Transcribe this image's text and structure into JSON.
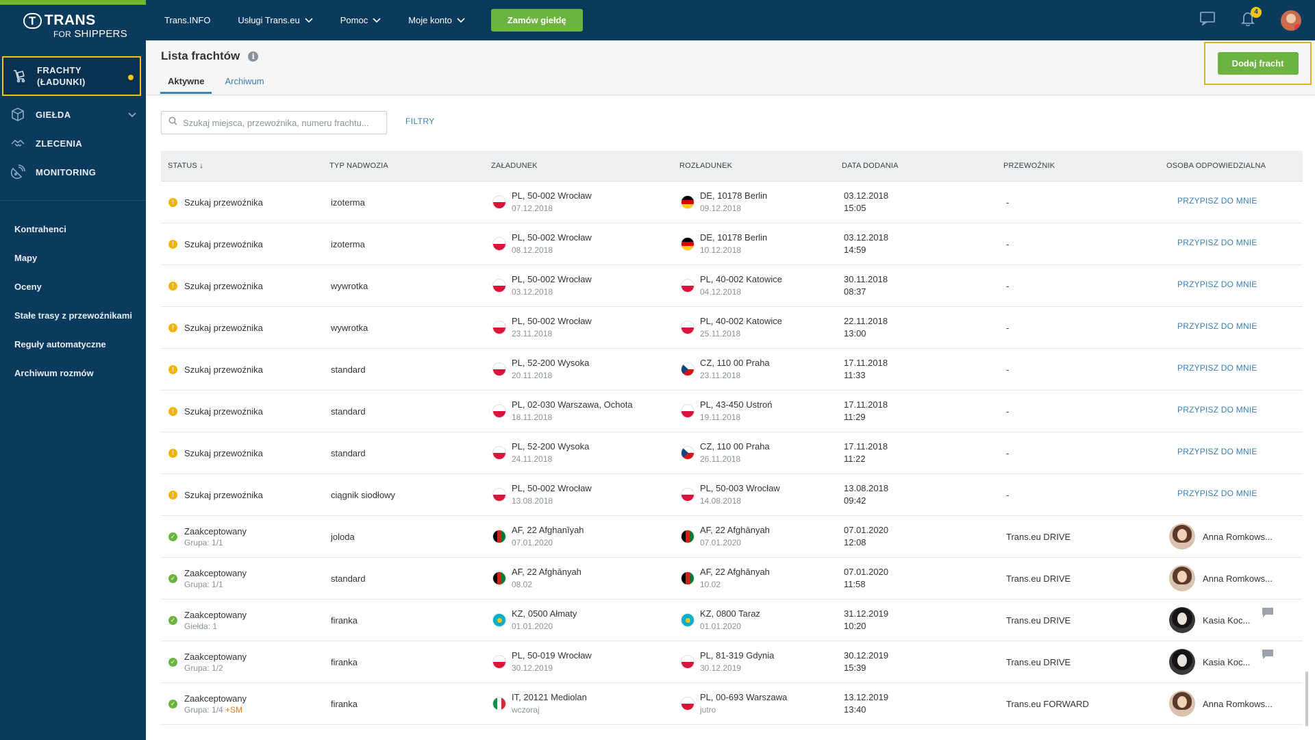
{
  "brand": {
    "name": "TRANS",
    "paren": "T",
    "tagline_prefix": "FOR",
    "tagline": "SHIPPERS"
  },
  "sidebar": {
    "main_items": [
      {
        "label": "FRACHTY (ŁADUNKI)",
        "icon": "cargo-icon",
        "active": true
      },
      {
        "label": "GIEŁDA",
        "icon": "box-icon",
        "has_chevron": true
      },
      {
        "label": "ZLECENIA",
        "icon": "handshake-icon"
      },
      {
        "label": "MONITORING",
        "icon": "satellite-icon"
      }
    ],
    "sub_items": [
      {
        "label": "Kontrahenci"
      },
      {
        "label": "Mapy"
      },
      {
        "label": "Oceny"
      },
      {
        "label": "Stałe trasy z przewoźnikami"
      },
      {
        "label": "Reguły automatyczne"
      },
      {
        "label": "Archiwum rozmów"
      }
    ]
  },
  "topbar": {
    "menu": [
      {
        "label": "Trans.INFO",
        "dropdown": false
      },
      {
        "label": "Usługi Trans.eu",
        "dropdown": true
      },
      {
        "label": "Pomoc",
        "dropdown": true
      },
      {
        "label": "Moje konto",
        "dropdown": true
      }
    ],
    "order_button": "Zamów giełdę",
    "notifications_count": "4"
  },
  "page": {
    "title": "Lista frachtów",
    "info_glyph": "i",
    "tabs": [
      {
        "label": "Aktywne",
        "active": true
      },
      {
        "label": "Archiwum",
        "active": false
      }
    ],
    "add_button": "Dodaj fracht",
    "search_placeholder": "Szukaj miejsca, przewoźnika, numeru frachtu...",
    "filters_label": "FILTRY"
  },
  "table": {
    "headers": {
      "status": "STATUS ↓",
      "body_type": "TYP NADWOZIA",
      "loading": "ZAŁADUNEK",
      "unloading": "ROZŁADUNEK",
      "date_added": "DATA DODANIA",
      "carrier": "PRZEWOŹNIK",
      "responsible": "OSOBA ODPOWIEDZIALNA"
    },
    "assign_label": "PRZYPISZ DO MNIE",
    "rows": [
      {
        "status": "Szukaj przewoźnika",
        "status_sub": "",
        "kind": "warn",
        "body": "izoterma",
        "load_flag": "pl",
        "load": "PL, 50-002 Wrocław",
        "load_date": "07.12.2018",
        "unload_flag": "de",
        "unload": "DE, 10178 Berlin",
        "unload_date": "09.12.2018",
        "date": "03.12.2018",
        "time": "15:05",
        "carrier": "-",
        "person": "",
        "avatar": "",
        "chat": false
      },
      {
        "status": "Szukaj przewoźnika",
        "status_sub": "",
        "kind": "warn",
        "body": "izoterma",
        "load_flag": "pl",
        "load": "PL, 50-002 Wrocław",
        "load_date": "08.12.2018",
        "unload_flag": "de",
        "unload": "DE, 10178 Berlin",
        "unload_date": "10.12.2018",
        "date": "03.12.2018",
        "time": "14:59",
        "carrier": "-",
        "person": "",
        "avatar": "",
        "chat": false
      },
      {
        "status": "Szukaj przewoźnika",
        "status_sub": "",
        "kind": "warn",
        "body": "wywrotka",
        "load_flag": "pl",
        "load": "PL, 50-002 Wrocław",
        "load_date": "03.12.2018",
        "unload_flag": "pl",
        "unload": "PL, 40-002 Katowice",
        "unload_date": "04.12.2018",
        "date": "30.11.2018",
        "time": "08:37",
        "carrier": "-",
        "person": "",
        "avatar": "",
        "chat": false
      },
      {
        "status": "Szukaj przewoźnika",
        "status_sub": "",
        "kind": "warn",
        "body": "wywrotka",
        "load_flag": "pl",
        "load": "PL, 50-002 Wrocław",
        "load_date": "23.11.2018",
        "unload_flag": "pl",
        "unload": "PL, 40-002 Katowice",
        "unload_date": "25.11.2018",
        "date": "22.11.2018",
        "time": "13:00",
        "carrier": "-",
        "person": "",
        "avatar": "",
        "chat": false
      },
      {
        "status": "Szukaj przewoźnika",
        "status_sub": "",
        "kind": "warn",
        "body": "standard",
        "load_flag": "pl",
        "load": "PL, 52-200 Wysoka",
        "load_date": "20.11.2018",
        "unload_flag": "cz",
        "unload": "CZ, 110 00 Praha",
        "unload_date": "23.11.2018",
        "date": "17.11.2018",
        "time": "11:33",
        "carrier": "-",
        "person": "",
        "avatar": "",
        "chat": false
      },
      {
        "status": "Szukaj przewoźnika",
        "status_sub": "",
        "kind": "warn",
        "body": "standard",
        "load_flag": "pl",
        "load": "PL, 02-030 Warszawa, Ochota",
        "load_date": "18.11.2018",
        "unload_flag": "pl",
        "unload": "PL, 43-450 Ustroń",
        "unload_date": "19.11.2018",
        "date": "17.11.2018",
        "time": "11:29",
        "carrier": "-",
        "person": "",
        "avatar": "",
        "chat": false
      },
      {
        "status": "Szukaj przewoźnika",
        "status_sub": "",
        "kind": "warn",
        "body": "standard",
        "load_flag": "pl",
        "load": "PL, 52-200 Wysoka",
        "load_date": "24.11.2018",
        "unload_flag": "cz",
        "unload": "CZ, 110 00 Praha",
        "unload_date": "26.11.2018",
        "date": "17.11.2018",
        "time": "11:22",
        "carrier": "-",
        "person": "",
        "avatar": "",
        "chat": false
      },
      {
        "status": "Szukaj przewoźnika",
        "status_sub": "",
        "kind": "warn",
        "body": "ciągnik siodłowy",
        "load_flag": "pl",
        "load": "PL, 50-002 Wrocław",
        "load_date": "13.08.2018",
        "unload_flag": "pl",
        "unload": "PL, 50-003 Wrocław",
        "unload_date": "14.08.2018",
        "date": "13.08.2018",
        "time": "09:42",
        "carrier": "-",
        "person": "",
        "avatar": "",
        "chat": false
      },
      {
        "status": "Zaakceptowany",
        "status_sub": "Grupa: 1/1",
        "kind": "ok",
        "body": "joloda",
        "load_flag": "af",
        "load": "AF, 22 Afghanīyah",
        "load_date": "07.01.2020",
        "unload_flag": "af",
        "unload": "AF, 22 Afghānyah",
        "unload_date": "07.01.2020",
        "date": "07.01.2020",
        "time": "12:08",
        "carrier": "Trans.eu DRIVE",
        "person": "Anna Romkows...",
        "avatar": "a",
        "chat": false
      },
      {
        "status": "Zaakceptowany",
        "status_sub": "Grupa: 1/1",
        "kind": "ok",
        "body": "standard",
        "load_flag": "af",
        "load": "AF, 22 Afghānyah",
        "load_date": "08.02",
        "unload_flag": "af",
        "unload": "AF, 22 Afghānyah",
        "unload_date": "10.02",
        "date": "07.01.2020",
        "time": "11:58",
        "carrier": "Trans.eu DRIVE",
        "person": "Anna Romkows...",
        "avatar": "a",
        "chat": false
      },
      {
        "status": "Zaakceptowany",
        "status_sub": "Giełda: 1",
        "kind": "ok",
        "body": "firanka",
        "load_flag": "kz",
        "load": "KZ, 0500 Ałmaty",
        "load_date": "01.01.2020",
        "unload_flag": "kz",
        "unload": "KZ, 0800 Taraz",
        "unload_date": "01.01.2020",
        "date": "31.12.2019",
        "time": "10:20",
        "carrier": "Trans.eu DRIVE",
        "person": "Kasia Koc...",
        "avatar": "k",
        "chat": true
      },
      {
        "status": "Zaakceptowany",
        "status_sub": "Grupa: 1/2",
        "kind": "ok",
        "body": "firanka",
        "load_flag": "pl",
        "load": "PL, 50-019 Wrocław",
        "load_date": "30.12.2019",
        "unload_flag": "pl",
        "unload": "PL, 81-319 Gdynia",
        "unload_date": "30.12.2019",
        "date": "30.12.2019",
        "time": "15:39",
        "carrier": "Trans.eu DRIVE",
        "person": "Kasia Koc...",
        "avatar": "k",
        "chat": true
      },
      {
        "status": "Zaakceptowany",
        "status_sub": "Grupa: 1/4",
        "status_extra": "+SM",
        "kind": "ok",
        "body": "firanka",
        "load_flag": "it",
        "load": "IT, 20121 Mediolan",
        "load_date": "wczoraj",
        "unload_flag": "pl",
        "unload": "PL, 00-693 Warszawa",
        "unload_date": "jutro",
        "date": "13.12.2019",
        "time": "13:40",
        "carrier": "Trans.eu FORWARD",
        "person": "Anna Romkows...",
        "avatar": "a",
        "chat": false
      }
    ]
  }
}
